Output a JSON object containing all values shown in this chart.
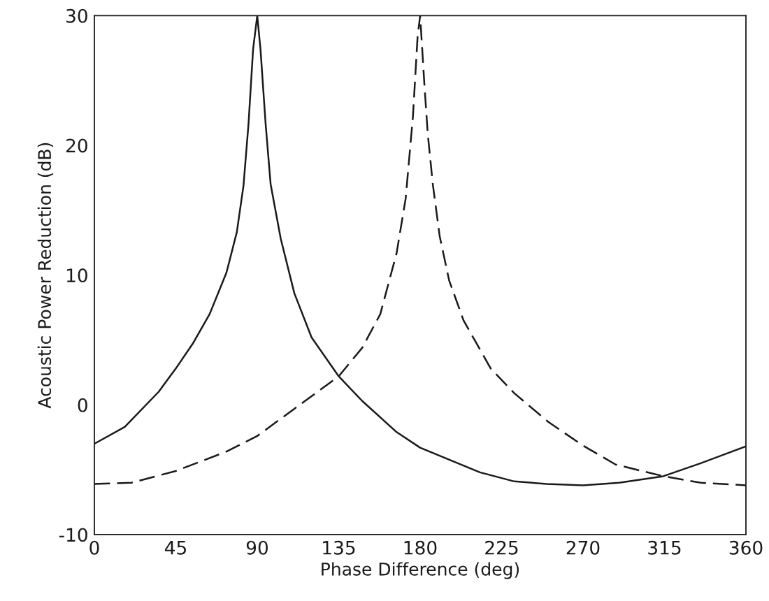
{
  "chart_data": {
    "type": "line",
    "xlabel": "Phase Difference (deg)",
    "ylabel": "Acoustic Power Reduction (dB)",
    "xlim": [
      0,
      360
    ],
    "xticks": [
      0,
      45,
      90,
      135,
      180,
      225,
      270,
      315,
      360
    ],
    "ylim": [
      -10,
      30
    ],
    "yticks": [
      -10,
      0,
      10,
      20,
      30
    ],
    "series": [
      {
        "color": "#1a1a1a",
        "line_style": "solid",
        "x": [
          0,
          16.8,
          35.5,
          45,
          54.3,
          63.7,
          73,
          78.7,
          82.4,
          85.2,
          87.7,
          90,
          91.8,
          94.6,
          97.4,
          103,
          110.5,
          120,
          135,
          148,
          167,
          180,
          213,
          232,
          250,
          270,
          290,
          314.4,
          335,
          360
        ],
        "values": [
          -3.0,
          -1.7,
          1.0,
          2.8,
          4.7,
          7.0,
          10.2,
          13.3,
          16.9,
          21.7,
          27.4,
          30,
          27.4,
          21.7,
          17.0,
          12.8,
          8.6,
          5.2,
          2.2,
          0.3,
          -2.1,
          -3.3,
          -5.2,
          -5.9,
          -6.1,
          -6.2,
          -6.0,
          -5.5,
          -4.5,
          -3.2
        ]
      },
      {
        "color": "#1a1a1a",
        "line_style": "dashed",
        "x": [
          0,
          20.5,
          45,
          73,
          90,
          110.5,
          135,
          148,
          158,
          167,
          172,
          176,
          178.6,
          180,
          182.3,
          184.2,
          187,
          190.8,
          196,
          204,
          219,
          232,
          250.7,
          269.5,
          288,
          314.4,
          335,
          360
        ],
        "values": [
          -6.1,
          -6.0,
          -5.1,
          -3.6,
          -2.4,
          -0.3,
          2.2,
          4.4,
          7.0,
          11.7,
          15.9,
          22.2,
          28.4,
          30,
          24.8,
          20.9,
          17.0,
          13.0,
          9.6,
          6.5,
          2.8,
          0.9,
          -1.3,
          -3.1,
          -4.6,
          -5.5,
          -6.0,
          -6.2
        ]
      }
    ]
  }
}
